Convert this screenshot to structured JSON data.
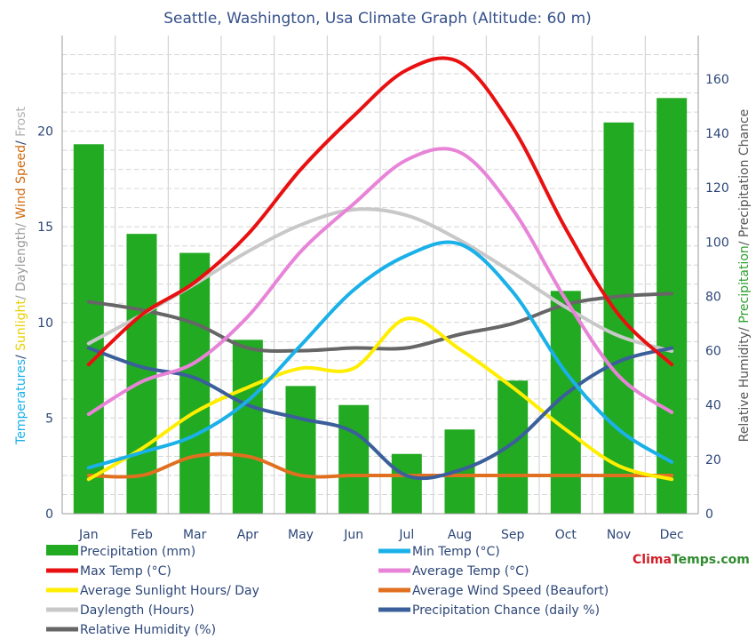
{
  "chart_data": {
    "type": "bar",
    "title": "Seattle, Washington,  Usa Climate Graph (Altitude: 60 m)",
    "categories": [
      "Jan",
      "Feb",
      "Mar",
      "Apr",
      "May",
      "Jun",
      "Jul",
      "Aug",
      "Sep",
      "Oct",
      "Nov",
      "Dec"
    ],
    "left_axis": {
      "label_parts": [
        {
          "text": "Temperatures",
          "color": "#1ab0e8"
        },
        {
          "text": "/ ",
          "color": "#2c4677"
        },
        {
          "text": "Sunlight",
          "color": "#e8d000"
        },
        {
          "text": "/ Daylength/ ",
          "color": "#9a9a9a"
        },
        {
          "text": "Wind Speed",
          "color": "#d06a10"
        },
        {
          "text": "/ ",
          "color": "#2c4677"
        },
        {
          "text": "Frost",
          "color": "#b0b0b0"
        }
      ],
      "ylim": [
        0,
        25
      ],
      "ticks": [
        "0",
        "5",
        "10",
        "15",
        "20"
      ]
    },
    "right_axis": {
      "label_parts": [
        {
          "text": "Relative Humidity/ ",
          "color": "#555555"
        },
        {
          "text": "Precipitation",
          "color": "#2fa02f"
        },
        {
          "text": "/ Precipitation Chance",
          "color": "#555555"
        }
      ],
      "ylim": [
        0,
        176
      ],
      "ticks": [
        "0",
        "20",
        "40",
        "60",
        "80",
        "100",
        "120",
        "140",
        "160"
      ]
    },
    "grid": true,
    "legend_position": "bottom",
    "series": [
      {
        "name": "Precipitation (mm)",
        "kind": "bar",
        "axis": "right",
        "color": "#22aa22",
        "values": [
          136,
          103,
          96,
          64,
          47,
          40,
          22,
          31,
          49,
          82,
          144,
          153
        ]
      },
      {
        "name": "Min Temp (°C)",
        "kind": "line",
        "axis": "left",
        "color": "#1ab0e8",
        "values": [
          2.4,
          3.2,
          4.1,
          5.9,
          8.8,
          11.7,
          13.5,
          14.1,
          11.6,
          7.4,
          4.4,
          2.7
        ]
      },
      {
        "name": "Max Temp (°C)",
        "kind": "line",
        "axis": "left",
        "color": "#e81010",
        "values": [
          7.8,
          10.4,
          12.1,
          14.6,
          18.0,
          20.8,
          23.2,
          23.6,
          20.2,
          14.9,
          10.4,
          7.8
        ]
      },
      {
        "name": "Average Temp (°C)",
        "kind": "line",
        "axis": "left",
        "color": "#e884d8",
        "values": [
          5.2,
          6.9,
          7.9,
          10.3,
          13.7,
          16.2,
          18.5,
          18.9,
          15.9,
          11.2,
          7.2,
          5.3
        ]
      },
      {
        "name": "Average Sunlight Hours/ Day",
        "kind": "line",
        "axis": "left",
        "color": "#ffee00",
        "values": [
          1.8,
          3.4,
          5.3,
          6.6,
          7.6,
          7.6,
          10.2,
          8.6,
          6.6,
          4.4,
          2.5,
          1.8
        ]
      },
      {
        "name": "Average Wind Speed (Beaufort)",
        "kind": "line",
        "axis": "left",
        "color": "#e07020",
        "values": [
          2.0,
          2.0,
          3.0,
          3.0,
          2.0,
          2.0,
          2.0,
          2.0,
          2.0,
          2.0,
          2.0,
          2.0
        ]
      },
      {
        "name": "Daylength (Hours)",
        "kind": "line",
        "axis": "left",
        "color": "#c8c8c8",
        "values": [
          8.9,
          10.4,
          12.0,
          13.7,
          15.1,
          15.9,
          15.6,
          14.3,
          12.6,
          10.8,
          9.3,
          8.5
        ]
      },
      {
        "name": "Precipitation Chance (daily %)",
        "kind": "line",
        "axis": "right",
        "color": "#3a5f9a",
        "values": [
          61,
          54,
          50,
          40,
          35,
          30,
          14,
          16,
          26,
          44,
          56,
          61
        ]
      },
      {
        "name": "Relative Humidity (%)",
        "kind": "line",
        "axis": "right",
        "color": "#666666",
        "values": [
          78,
          75,
          70,
          61,
          60,
          61,
          61,
          66,
          70,
          77,
          80,
          81
        ]
      }
    ],
    "legend_layout": [
      {
        "series": 0,
        "col": 0,
        "row": 0
      },
      {
        "series": 1,
        "col": 1,
        "row": 0
      },
      {
        "series": 2,
        "col": 0,
        "row": 1
      },
      {
        "series": 3,
        "col": 1,
        "row": 1
      },
      {
        "series": 4,
        "col": 0,
        "row": 2
      },
      {
        "series": 5,
        "col": 1,
        "row": 2
      },
      {
        "series": 6,
        "col": 0,
        "row": 3
      },
      {
        "series": 7,
        "col": 1,
        "row": 3
      },
      {
        "series": 8,
        "col": 0,
        "row": 4
      }
    ]
  },
  "brand": {
    "part1": "Clima",
    "part2": "Temps.com"
  }
}
